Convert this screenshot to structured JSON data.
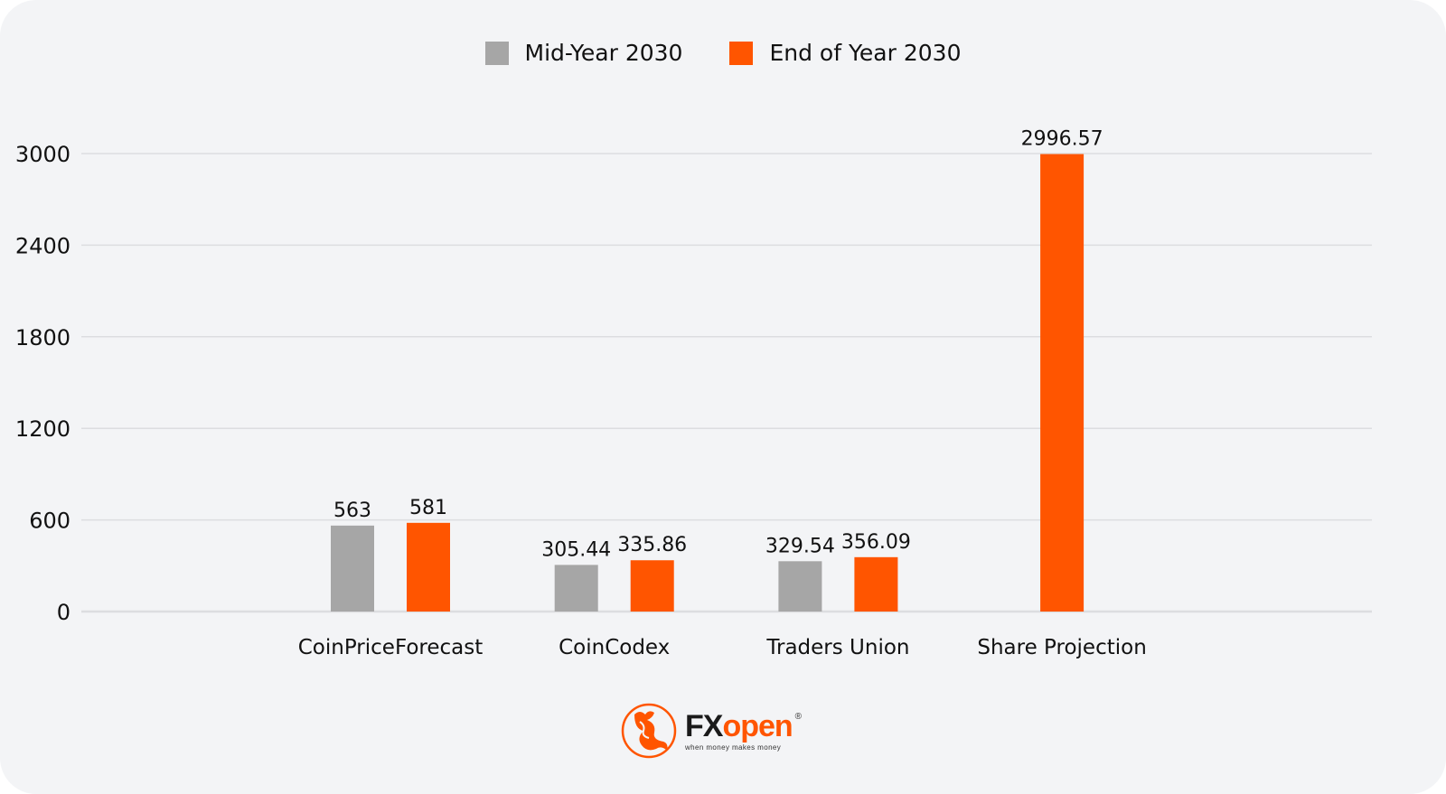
{
  "chart_data": {
    "type": "bar",
    "title": "",
    "xlabel": "",
    "ylabel": "",
    "ylim": [
      0,
      3000
    ],
    "yticks": [
      0,
      600,
      1200,
      1800,
      2400,
      3000
    ],
    "ytick_labels": [
      "0",
      "600",
      "1200",
      "1800",
      "2400",
      "3000"
    ],
    "grid": true,
    "legend_position": "top-center",
    "categories": [
      "CoinPriceForecast",
      "CoinCodex",
      "Traders Union",
      "Share Projection"
    ],
    "series": [
      {
        "name": "Mid-Year 2030",
        "color": "#a6a6a6",
        "values": [
          563,
          305.44,
          329.54,
          null
        ],
        "labels": [
          "563",
          "305.44",
          "329.54",
          null
        ]
      },
      {
        "name": "End of Year 2030",
        "color": "#ff5500",
        "values": [
          581,
          335.86,
          356.09,
          2996.57
        ],
        "labels": [
          "581",
          "335.86",
          "356.09",
          "2996.57"
        ]
      }
    ]
  },
  "branding": {
    "logo_text_fx": "FX",
    "logo_text_open": "open",
    "logo_tagline": "when money makes money",
    "registered_mark": "®",
    "brand_color": "#ff5500",
    "dark_color": "#1a1a1a"
  },
  "colors": {
    "background": "#f3f4f6",
    "grid": "#dcdde0"
  }
}
